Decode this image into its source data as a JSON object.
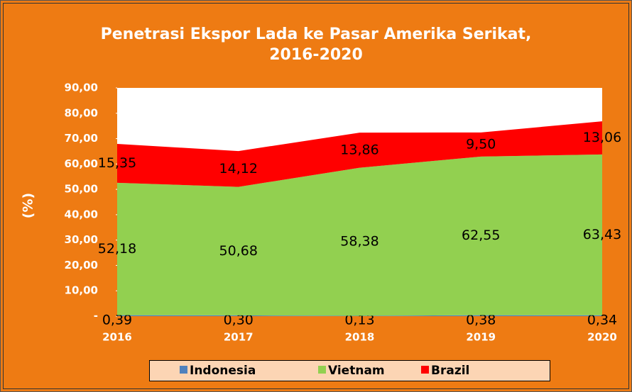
{
  "chart_data": {
    "type": "stacked-area",
    "title": [
      "Penetrasi Ekspor Lada ke Pasar Amerika Serikat,",
      "2016-2020"
    ],
    "y_label": "(%)",
    "categories": [
      "2016",
      "2017",
      "2018",
      "2019",
      "2020"
    ],
    "series": [
      {
        "name": "Indonesia",
        "color": "#4f81bd",
        "values": [
          0.39,
          0.3,
          0.13,
          0.38,
          0.34
        ],
        "value_labels": [
          "0,39",
          "0,30",
          "0,13",
          "0,38",
          "0,34"
        ]
      },
      {
        "name": "Vietnam",
        "color": "#92d050",
        "values": [
          52.18,
          50.68,
          58.38,
          62.55,
          63.43
        ],
        "value_labels": [
          "52,18",
          "50,68",
          "58,38",
          "62,55",
          "63,43"
        ]
      },
      {
        "name": "Brazil",
        "color": "#ff0000",
        "values": [
          15.35,
          14.12,
          13.86,
          9.5,
          13.06
        ],
        "value_labels": [
          "15,35",
          "14,12",
          "13,86",
          "9,50",
          "13,06"
        ]
      }
    ],
    "ylim": [
      0,
      90
    ],
    "yticks": [
      {
        "value": 0,
        "label": "-"
      },
      {
        "value": 10,
        "label": "10,00"
      },
      {
        "value": 20,
        "label": "20,00"
      },
      {
        "value": 30,
        "label": "30,00"
      },
      {
        "value": 40,
        "label": "40,00"
      },
      {
        "value": 50,
        "label": "50,00"
      },
      {
        "value": 60,
        "label": "60,00"
      },
      {
        "value": 70,
        "label": "70,00"
      },
      {
        "value": 80,
        "label": "80,00"
      },
      {
        "value": 90,
        "label": "90,00"
      }
    ],
    "legend": "bottom"
  }
}
